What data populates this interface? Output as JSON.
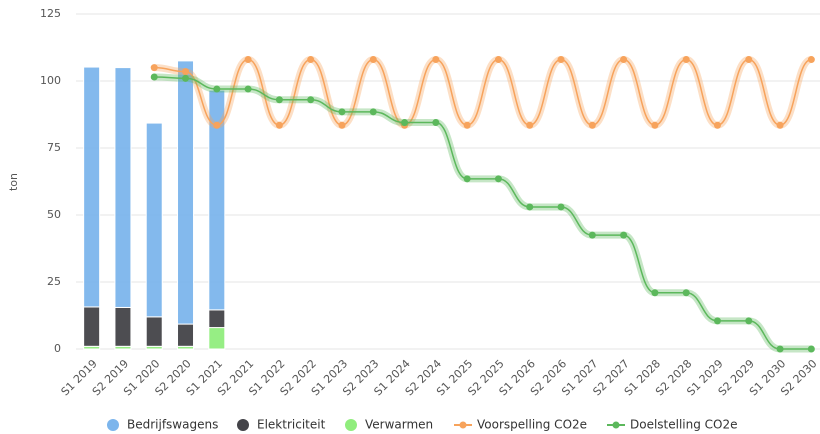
{
  "chart_data": {
    "type": "bar",
    "y_label": "ton",
    "categories": [
      "S1 2019",
      "S2 2019",
      "S1 2020",
      "S2 2020",
      "S1 2021",
      "S2 2021",
      "S1 2022",
      "S2 2022",
      "S1 2023",
      "S2 2023",
      "S1 2024",
      "S2 2024",
      "S1 2025",
      "S2 2025",
      "S1 2026",
      "S2 2026",
      "S1 2027",
      "S2 2027",
      "S1 2028",
      "S2 2028",
      "S1 2029",
      "S2 2029",
      "S1 2030",
      "S2 2030"
    ],
    "ylim": [
      0,
      125
    ],
    "yticks": [
      0,
      25,
      50,
      75,
      100,
      125
    ],
    "grid": true,
    "stacked": true,
    "legend": "bottom",
    "series": [
      {
        "name": "Bedrijfswagens",
        "type": "bar",
        "color": "#7cb5ec",
        "values": [
          89.5,
          89.5,
          72.3,
          98.2,
          82,
          null,
          null,
          null,
          null,
          null,
          null,
          null,
          null,
          null,
          null,
          null,
          null,
          null,
          null,
          null,
          null,
          null,
          null,
          null
        ]
      },
      {
        "name": "Elektriciteit",
        "type": "bar",
        "color": "#434348",
        "values": [
          14.7,
          14.5,
          11,
          8.3,
          6.6,
          null,
          null,
          null,
          null,
          null,
          null,
          null,
          null,
          null,
          null,
          null,
          null,
          null,
          null,
          null,
          null,
          null,
          null,
          null
        ]
      },
      {
        "name": "Verwarmen",
        "type": "bar",
        "color": "#90ed7d",
        "values": [
          1,
          1,
          1,
          1,
          8,
          null,
          null,
          null,
          null,
          null,
          null,
          null,
          null,
          null,
          null,
          null,
          null,
          null,
          null,
          null,
          null,
          null,
          null,
          null
        ]
      },
      {
        "name": "Voorspelling CO2e",
        "type": "line",
        "color": "#f7a35c",
        "values": [
          null,
          null,
          105,
          103.5,
          83.5,
          108,
          83.5,
          108,
          83.5,
          108,
          83.5,
          108,
          83.5,
          108,
          83.5,
          108,
          83.5,
          108,
          83.5,
          108,
          83.5,
          108,
          83.5,
          108
        ]
      },
      {
        "name": "Doelstelling CO2e",
        "type": "line",
        "color": "#5cb85c",
        "values": [
          null,
          null,
          101.5,
          101,
          97,
          97,
          93,
          93,
          88.5,
          88.5,
          84.5,
          84.5,
          63.5,
          63.5,
          53,
          53,
          42.5,
          42.5,
          21,
          21,
          10.5,
          10.5,
          0,
          0
        ]
      }
    ]
  }
}
